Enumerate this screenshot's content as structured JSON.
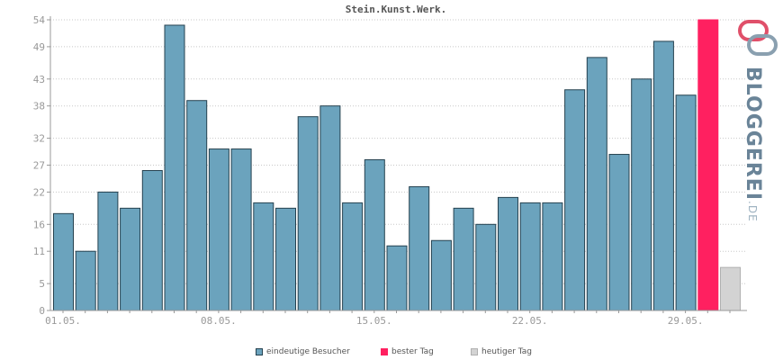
{
  "colors": {
    "bar": "#6ba3bd",
    "bar_stroke": "#25414f",
    "best": "#ff2060",
    "today": "#d3d3d3",
    "today_stroke": "#b0b0b0",
    "grid": "#c8c8c8"
  },
  "legend": {
    "visitors": "eindeutige Besucher",
    "best": "bester Tag",
    "today": "heutiger Tag"
  },
  "logo": {
    "main": "BLOGGEREI",
    "suffix": ".DE"
  },
  "chart_data": {
    "type": "bar",
    "title": "Stein.Kunst.Werk.",
    "xlabel": "",
    "ylabel": "",
    "ylim": [
      0,
      54
    ],
    "yticks": [
      "0",
      "5",
      "11",
      "16",
      "22",
      "27",
      "32",
      "38",
      "43",
      "49",
      "54"
    ],
    "grid": true,
    "legend_position": "bottom",
    "categories": [
      "01.05.",
      "02.05.",
      "03.05.",
      "04.05.",
      "05.05.",
      "06.05.",
      "07.05.",
      "08.05.",
      "09.05.",
      "10.05.",
      "11.05.",
      "12.05.",
      "13.05.",
      "14.05.",
      "15.05.",
      "16.05.",
      "17.05.",
      "18.05.",
      "19.05.",
      "20.05.",
      "21.05.",
      "22.05.",
      "23.05.",
      "24.05.",
      "25.05.",
      "26.05.",
      "27.05.",
      "28.05.",
      "29.05.",
      "30.05.",
      "31.05."
    ],
    "xtick_labels": [
      "01.05.",
      "08.05.",
      "15.05.",
      "22.05.",
      "29.05."
    ],
    "xtick_indices": [
      0,
      7,
      14,
      21,
      28
    ],
    "series": [
      {
        "name": "eindeutige Besucher",
        "values": [
          18,
          11,
          22,
          19,
          26,
          53,
          39,
          30,
          30,
          20,
          19,
          36,
          38,
          20,
          28,
          12,
          23,
          13,
          19,
          16,
          21,
          20,
          20,
          41,
          47,
          29,
          43,
          50,
          40,
          null,
          null
        ]
      },
      {
        "name": "bester Tag",
        "values": [
          null,
          null,
          null,
          null,
          null,
          null,
          null,
          null,
          null,
          null,
          null,
          null,
          null,
          null,
          null,
          null,
          null,
          null,
          null,
          null,
          null,
          null,
          null,
          null,
          null,
          null,
          null,
          null,
          null,
          54,
          null
        ]
      },
      {
        "name": "heutiger Tag",
        "values": [
          null,
          null,
          null,
          null,
          null,
          null,
          null,
          null,
          null,
          null,
          null,
          null,
          null,
          null,
          null,
          null,
          null,
          null,
          null,
          null,
          null,
          null,
          null,
          null,
          null,
          null,
          null,
          null,
          null,
          null,
          8
        ]
      }
    ]
  }
}
